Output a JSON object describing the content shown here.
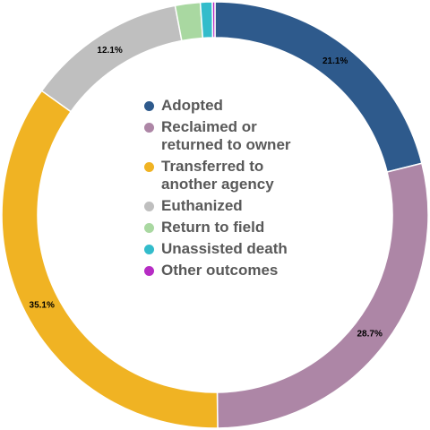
{
  "chart_data": {
    "type": "pie",
    "donut": true,
    "title": "",
    "legend_position": "center",
    "slices": [
      {
        "name": "Adopted",
        "value": 21.1,
        "label": "21.1%",
        "color": "#2e5a8c"
      },
      {
        "name": "Reclaimed or returned to owner",
        "value": 28.7,
        "label": "28.7%",
        "color": "#ad86a6"
      },
      {
        "name": "Transferred to another agency",
        "value": 35.1,
        "label": "35.1%",
        "color": "#f0b323"
      },
      {
        "name": "Euthanized",
        "value": 12.1,
        "label": "12.1%",
        "color": "#bfbfbf"
      },
      {
        "name": "Return to field",
        "value": 1.9,
        "label": "",
        "color": "#a9d8a1"
      },
      {
        "name": "Unassisted death",
        "value": 0.9,
        "label": "",
        "color": "#33bccb"
      },
      {
        "name": "Other outcomes",
        "value": 0.2,
        "label": "",
        "color": "#b62cc4"
      }
    ]
  }
}
